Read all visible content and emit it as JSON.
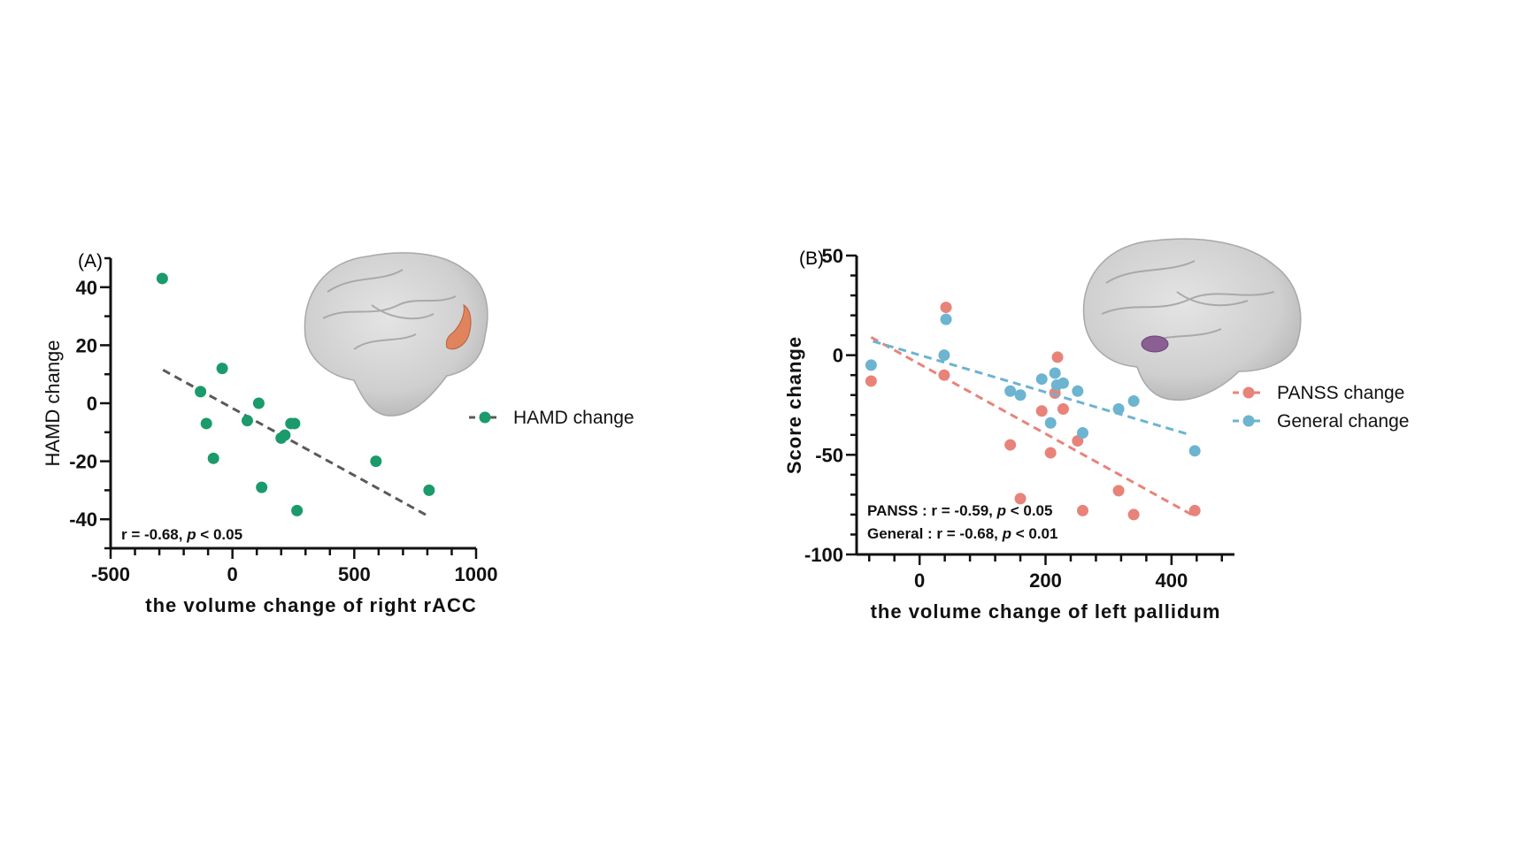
{
  "chart_data": [
    {
      "type": "scatter",
      "panel_label": "(A)",
      "xlabel": "the volume change of  right  rACC",
      "ylabel": "HAMD change",
      "xlim": [
        -500,
        1000
      ],
      "ylim": [
        -50,
        50
      ],
      "xticks": [
        -500,
        0,
        500,
        1000
      ],
      "yticks": [
        -40,
        -20,
        0,
        20,
        40
      ],
      "grid": false,
      "legend_position": "right",
      "annotation": {
        "prefix": "r = -0.68, ",
        "p": "p",
        "suffix": " < 0.05"
      },
      "series": [
        {
          "name": "HAMD change",
          "color": "#1b9a6c",
          "x": [
            -288,
            -42,
            -131,
            -107,
            -78,
            108,
            61,
            120,
            200,
            215,
            240,
            255,
            265,
            589,
            807
          ],
          "y": [
            43,
            12,
            4,
            -7,
            -19,
            0,
            -6,
            -29,
            -12,
            -11,
            -7,
            -7,
            -37,
            -20,
            -30
          ],
          "fit": {
            "x": [
              -285,
              805
            ],
            "y": [
              11.5,
              -39
            ],
            "color": "#5a5a5a"
          }
        }
      ],
      "inset": "brain-right-rACC",
      "highlight_color": "#e0845e"
    },
    {
      "type": "scatter",
      "panel_label": "(B)",
      "xlabel": "the volume change of left pallidum",
      "ylabel": "Score change",
      "xlim": [
        -100,
        500
      ],
      "ylim": [
        -100,
        50
      ],
      "xticks": [
        0,
        200,
        400
      ],
      "yticks": [
        -100,
        -50,
        0,
        50
      ],
      "grid": false,
      "legend_position": "right",
      "annotations": [
        {
          "prefix": "PANSS :  r = -0.59, ",
          "p": "p",
          "suffix": " < 0.05"
        },
        {
          "prefix": "General :  r = -0.68, ",
          "p": "p",
          "suffix": " < 0.01"
        }
      ],
      "series": [
        {
          "name": "PANSS change",
          "color": "#e8837a",
          "x": [
            42,
            -77,
            39,
            219,
            215,
            194,
            228,
            144,
            208,
            251,
            160,
            259,
            316,
            340,
            437
          ],
          "y": [
            24,
            -13,
            -10,
            -1,
            -19,
            -28,
            -27,
            -45,
            -49,
            -43,
            -72,
            -78,
            -68,
            -80,
            -78
          ],
          "fit": {
            "x": [
              -77,
              432
            ],
            "y": [
              9,
              -80
            ]
          }
        },
        {
          "name": "General change",
          "color": "#6cb4d0",
          "x": [
            42,
            -77,
            39,
            194,
            215,
            218,
            228,
            144,
            160,
            208,
            251,
            259,
            316,
            340,
            437
          ],
          "y": [
            18,
            -5,
            0,
            -12,
            -9,
            -15,
            -14,
            -18,
            -20,
            -34,
            -18,
            -39,
            -27,
            -23,
            -48
          ],
          "fit": {
            "x": [
              -74,
              430
            ],
            "y": [
              7,
              -40
            ]
          }
        }
      ],
      "inset": "brain-left-pallidum",
      "highlight_color": "#8a5f93"
    }
  ]
}
